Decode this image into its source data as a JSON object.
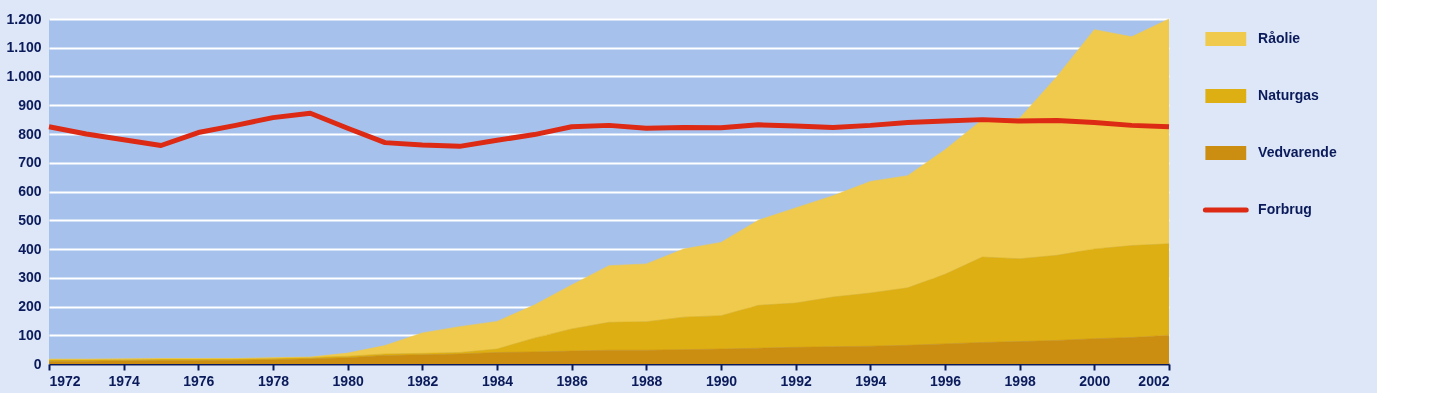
{
  "chart_data": {
    "type": "area",
    "stacked": true,
    "x": [
      1972,
      1973,
      1974,
      1975,
      1976,
      1977,
      1978,
      1979,
      1980,
      1981,
      1982,
      1983,
      1984,
      1985,
      1986,
      1987,
      1988,
      1989,
      1990,
      1991,
      1992,
      1993,
      1994,
      1995,
      1996,
      1997,
      1998,
      1999,
      2000,
      2001,
      2002
    ],
    "series": [
      {
        "name": "Vedvarende",
        "color": "#cc8e10",
        "values": [
          10,
          10,
          11,
          12,
          12,
          13,
          15,
          18,
          22,
          30,
          32,
          35,
          40,
          42,
          45,
          48,
          48,
          50,
          52,
          55,
          58,
          60,
          62,
          65,
          70,
          75,
          78,
          82,
          88,
          92,
          100
        ]
      },
      {
        "name": "Naturgas",
        "color": "#deaf12",
        "values": [
          5,
          5,
          5,
          5,
          5,
          5,
          5,
          5,
          5,
          5,
          5,
          5,
          12,
          48,
          77,
          97,
          99,
          113,
          116,
          149,
          154,
          173,
          185,
          200,
          242,
          297,
          288,
          296,
          312,
          320,
          318
        ]
      },
      {
        "name": "Råolie",
        "color": "#f0ca4c",
        "values": [
          2,
          2,
          2,
          2,
          2,
          1,
          2,
          1,
          11,
          29,
          71,
          90,
          96,
          115,
          153,
          197,
          201,
          237,
          255,
          296,
          331,
          352,
          388,
          390,
          433,
          478,
          489,
          622,
          763,
          726,
          782
        ]
      },
      {
        "name": "Forbrug",
        "type": "line",
        "color": "#dc2a14",
        "values": [
          825,
          800,
          780,
          760,
          805,
          830,
          857,
          872,
          820,
          770,
          762,
          757,
          778,
          798,
          825,
          830,
          820,
          823,
          822,
          832,
          828,
          823,
          830,
          840,
          845,
          850,
          845,
          847,
          840,
          830,
          825
        ]
      }
    ],
    "xlim": [
      1972,
      2002
    ],
    "xticks": [
      1972,
      1974,
      1976,
      1978,
      1980,
      1982,
      1984,
      1986,
      1988,
      1990,
      1992,
      1994,
      1996,
      1998,
      2000,
      2002
    ],
    "ylim": [
      0,
      1200
    ],
    "yticks": [
      0,
      100,
      200,
      300,
      400,
      500,
      600,
      700,
      800,
      900,
      {
        "value": 1000,
        "label": "1.000"
      },
      {
        "value": 1100,
        "label": "1.100"
      },
      {
        "value": 1200,
        "label": "1.200"
      }
    ],
    "grid": "y",
    "legend": "right"
  }
}
